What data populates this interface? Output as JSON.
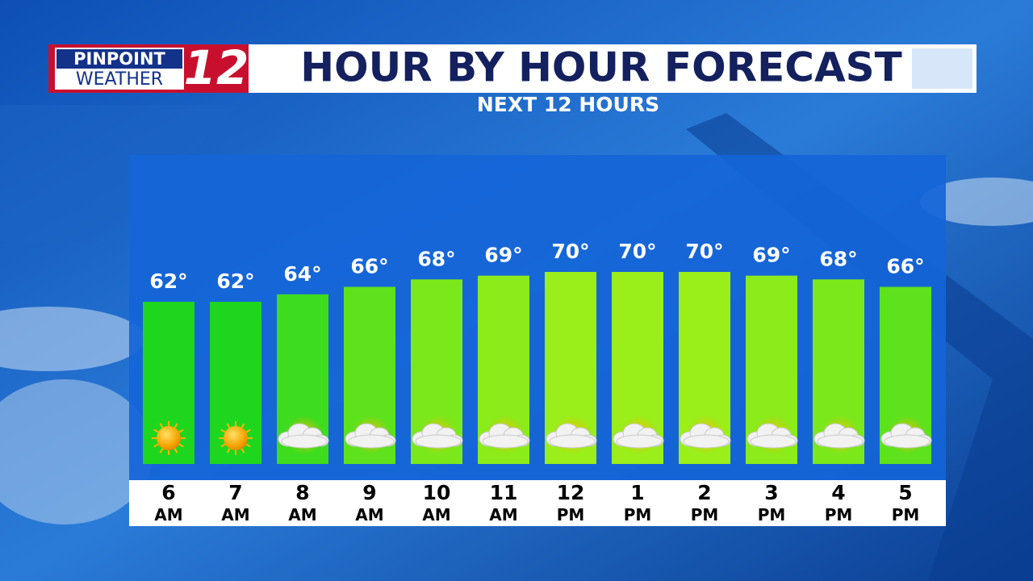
{
  "logo": {
    "line1": "PINPOINT",
    "line2": "WEATHER",
    "number": "12"
  },
  "chart_data": {
    "type": "bar",
    "title": "HOUR BY HOUR FORECAST",
    "subtitle": "NEXT 12 HOURS",
    "categories": [
      "6 AM",
      "7 AM",
      "8 AM",
      "9 AM",
      "10 AM",
      "11 AM",
      "12 PM",
      "1 PM",
      "2 PM",
      "3 PM",
      "4 PM",
      "5 PM"
    ],
    "values": [
      62,
      62,
      64,
      66,
      68,
      69,
      70,
      70,
      70,
      69,
      68,
      66
    ],
    "value_labels": [
      "62°",
      "62°",
      "64°",
      "66°",
      "68°",
      "69°",
      "70°",
      "70°",
      "70°",
      "69°",
      "68°",
      "66°"
    ],
    "icons": [
      "sun",
      "sun",
      "partly-cloudy",
      "partly-cloudy",
      "partly-cloudy",
      "partly-cloudy",
      "partly-cloudy",
      "partly-cloudy",
      "partly-cloudy",
      "partly-cloudy",
      "partly-cloudy",
      "partly-cloudy"
    ]
  }
}
